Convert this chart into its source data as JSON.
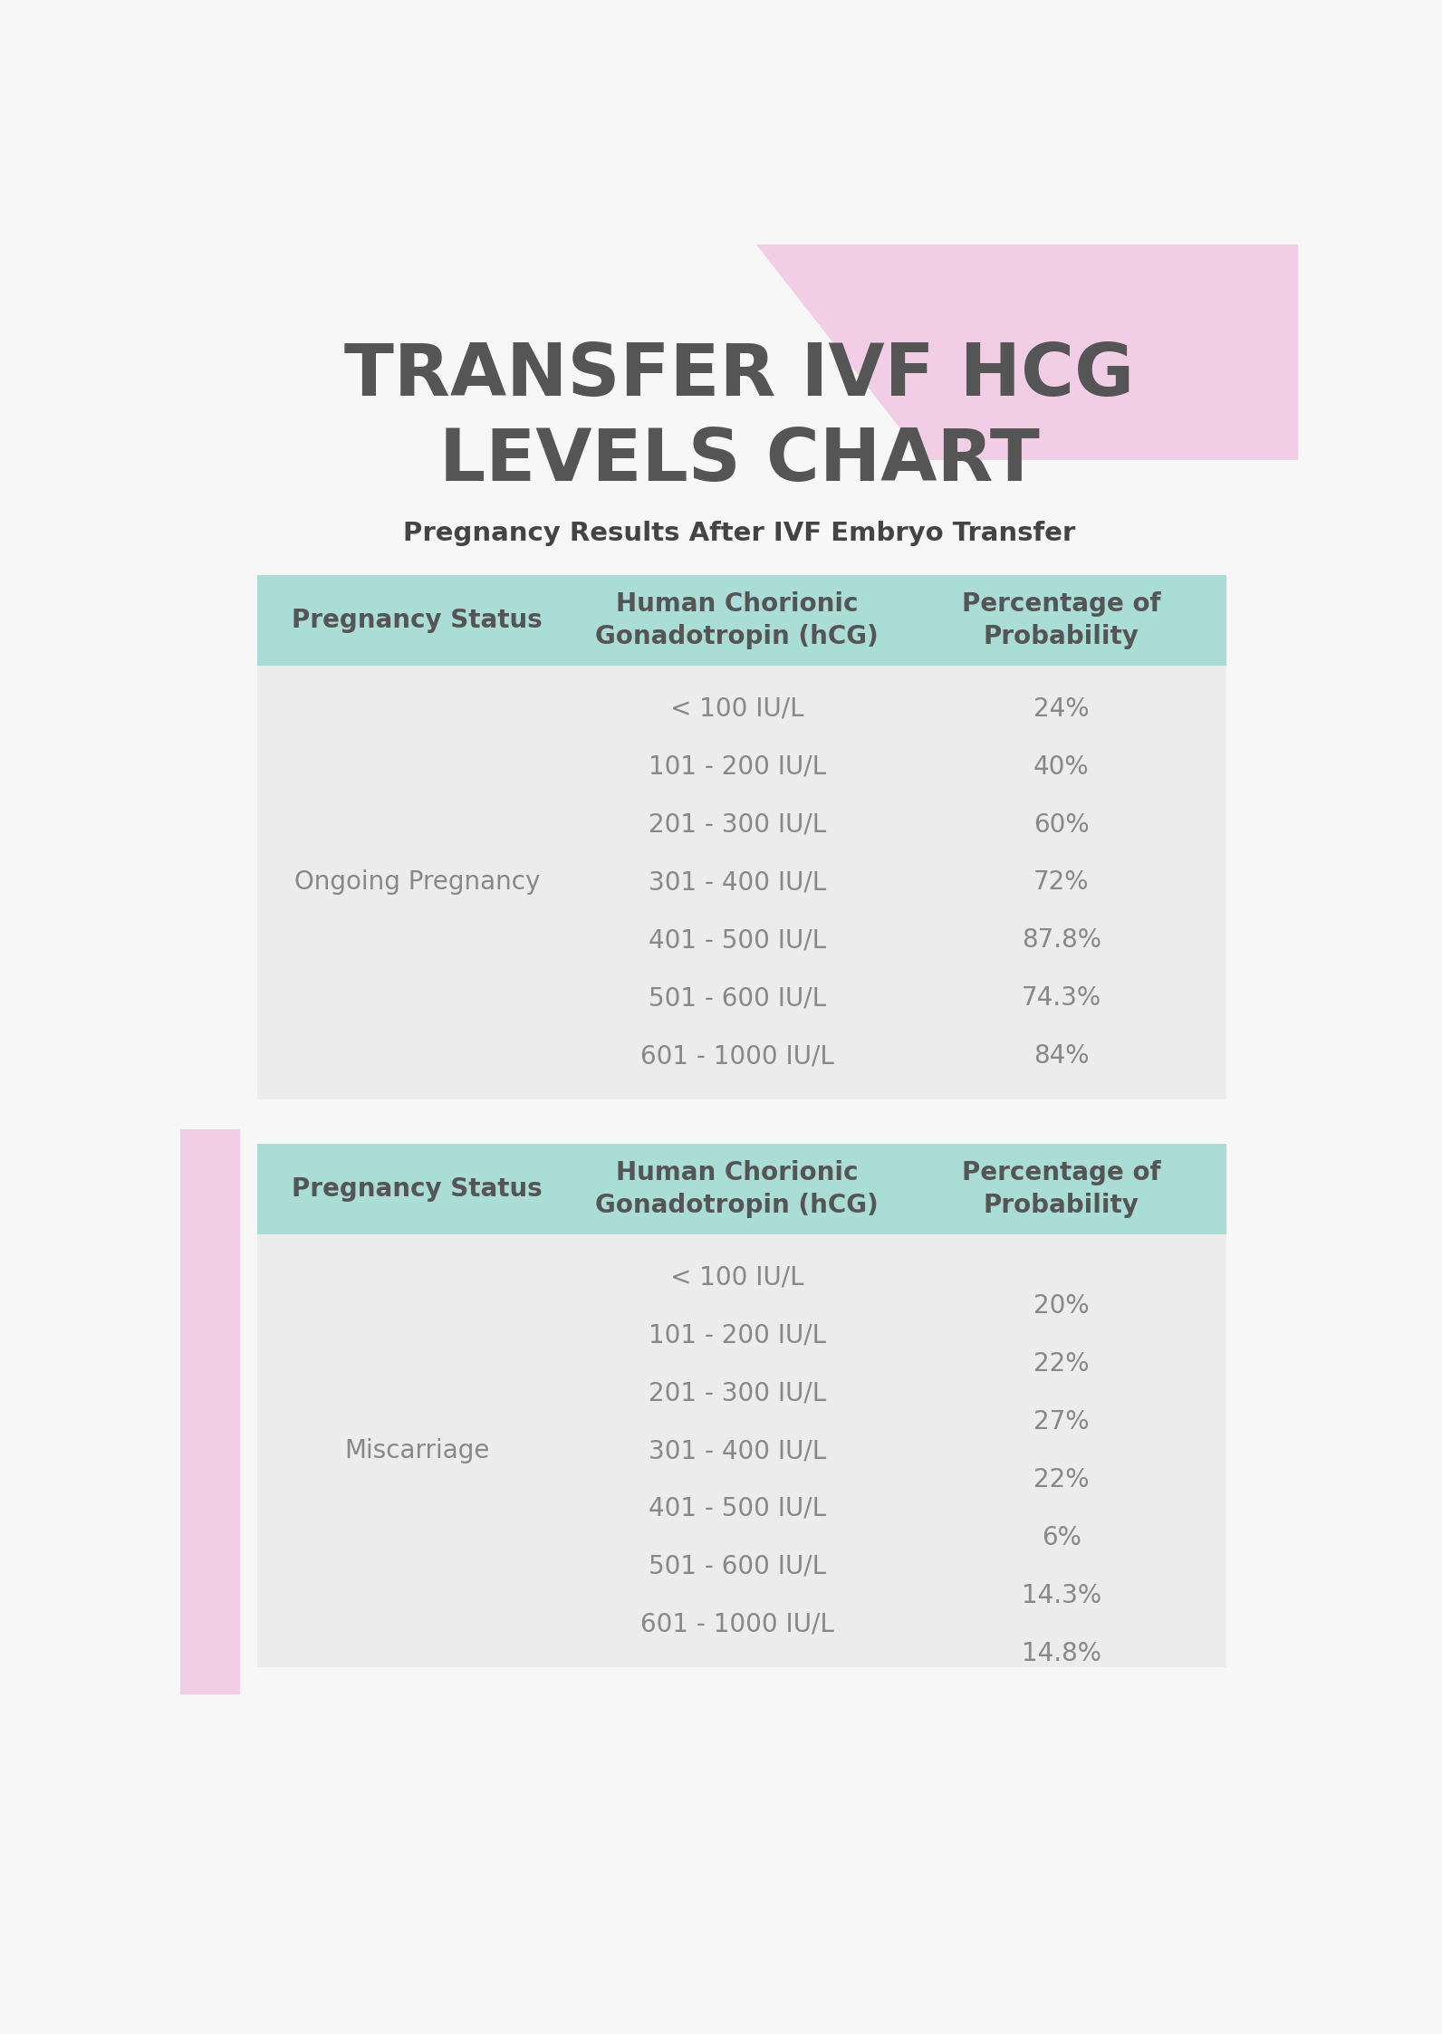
{
  "title": "TRANSFER IVF HCG\nLEVELS CHART",
  "subtitle": "Pregnancy Results After IVF Embryo Transfer",
  "bg_color": "#f7f7f7",
  "pink_shape_color": "#f2cee6",
  "pink_left_color": "#f2cee6",
  "teal_header_color": "#aaddd5",
  "body_bg_color": "#ececec",
  "header_text_color": "#555555",
  "body_text_color": "#888888",
  "title_color": "#555555",
  "subtitle_color": "#444444",
  "table1": {
    "header": [
      "Pregnancy Status",
      "Human Chorionic\nGonadotropin (hCG)",
      "Percentage of\nProbability"
    ],
    "status": "Ongoing Pregnancy",
    "rows": [
      [
        "< 100 IU/L",
        "24%"
      ],
      [
        "101 - 200 IU/L",
        "40%"
      ],
      [
        "201 - 300 IU/L",
        "60%"
      ],
      [
        "301 - 400 IU/L",
        "72%"
      ],
      [
        "401 - 500 IU/L",
        "87.8%"
      ],
      [
        "501 - 600 IU/L",
        "74.3%"
      ],
      [
        "601 - 1000 IU/L",
        "84%"
      ]
    ],
    "pct_stagger": false
  },
  "table2": {
    "header": [
      "Pregnancy Status",
      "Human Chorionic\nGonadotropin (hCG)",
      "Percentage of\nProbability"
    ],
    "status": "Miscarriage",
    "rows": [
      [
        "< 100 IU/L",
        "20%"
      ],
      [
        "101 - 200 IU/L",
        "22%"
      ],
      [
        "201 - 300 IU/L",
        "27%"
      ],
      [
        "301 - 400 IU/L",
        "22%"
      ],
      [
        "401 - 500 IU/L",
        "6%"
      ],
      [
        "501 - 600 IU/L",
        "14.3%"
      ],
      [
        "601 - 1000 IU/L",
        "14.8%"
      ]
    ],
    "pct_stagger": true
  }
}
